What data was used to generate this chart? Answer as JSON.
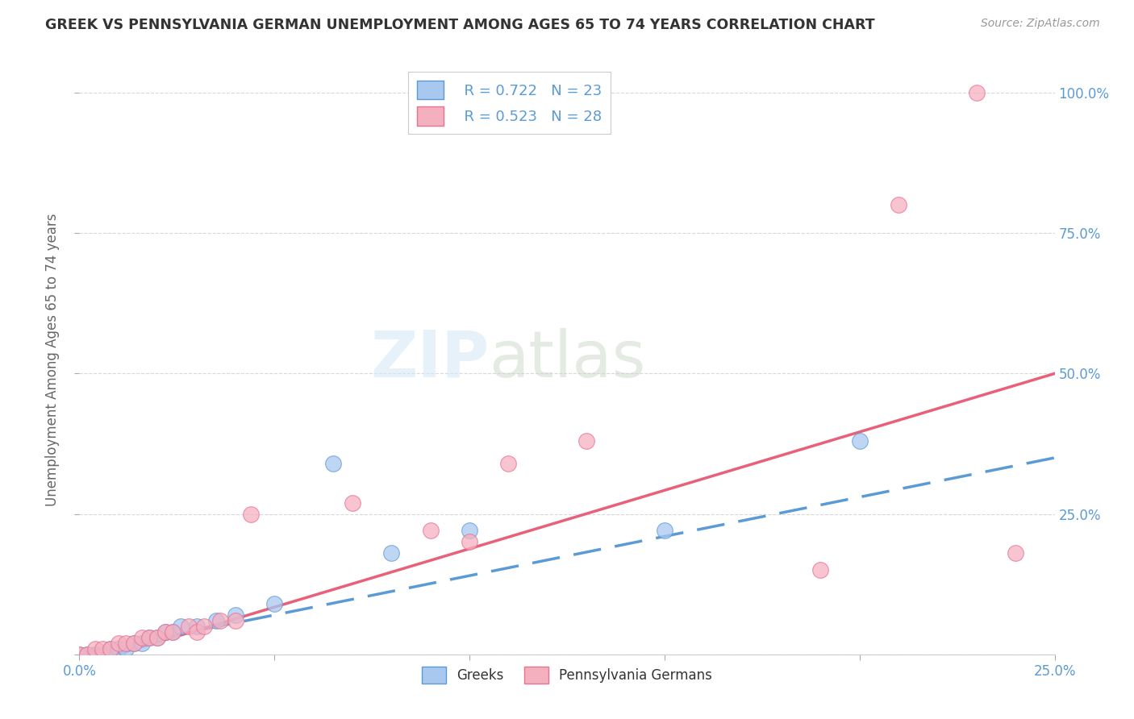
{
  "title": "GREEK VS PENNSYLVANIA GERMAN UNEMPLOYMENT AMONG AGES 65 TO 74 YEARS CORRELATION CHART",
  "source": "Source: ZipAtlas.com",
  "ylabel": "Unemployment Among Ages 65 to 74 years",
  "xlim": [
    0.0,
    0.25
  ],
  "ylim": [
    0.0,
    1.05
  ],
  "x_ticks": [
    0.0,
    0.05,
    0.1,
    0.15,
    0.2,
    0.25
  ],
  "x_tick_labels": [
    "0.0%",
    "",
    "",
    "",
    "",
    "25.0%"
  ],
  "y_ticks": [
    0.0,
    0.25,
    0.5,
    0.75,
    1.0
  ],
  "y_tick_labels_right": [
    "",
    "25.0%",
    "50.0%",
    "75.0%",
    "100.0%"
  ],
  "background_color": "#ffffff",
  "grid_color": "#d0d0d0",
  "legend_r1": "R = 0.722",
  "legend_n1": "N = 23",
  "legend_r2": "R = 0.523",
  "legend_n2": "N = 28",
  "legend_color1": "#a8c8f0",
  "legend_color2": "#f5b0c0",
  "greek_color": "#a8c8f0",
  "pa_german_color": "#f5b0c0",
  "greek_edge_color": "#5B9BD5",
  "pa_german_edge_color": "#E87090",
  "greek_line_color": "#5B9BD5",
  "pa_german_line_color": "#E8607A",
  "greek_scatter": [
    [
      0.0,
      0.0
    ],
    [
      0.002,
      0.0
    ],
    [
      0.004,
      0.0
    ],
    [
      0.006,
      0.0
    ],
    [
      0.008,
      0.01
    ],
    [
      0.01,
      0.01
    ],
    [
      0.012,
      0.01
    ],
    [
      0.014,
      0.02
    ],
    [
      0.016,
      0.02
    ],
    [
      0.018,
      0.03
    ],
    [
      0.02,
      0.03
    ],
    [
      0.022,
      0.04
    ],
    [
      0.024,
      0.04
    ],
    [
      0.026,
      0.05
    ],
    [
      0.03,
      0.05
    ],
    [
      0.035,
      0.06
    ],
    [
      0.04,
      0.07
    ],
    [
      0.05,
      0.09
    ],
    [
      0.065,
      0.34
    ],
    [
      0.08,
      0.18
    ],
    [
      0.1,
      0.22
    ],
    [
      0.15,
      0.22
    ],
    [
      0.2,
      0.38
    ]
  ],
  "pa_german_scatter": [
    [
      0.0,
      0.0
    ],
    [
      0.002,
      0.0
    ],
    [
      0.004,
      0.01
    ],
    [
      0.006,
      0.01
    ],
    [
      0.008,
      0.01
    ],
    [
      0.01,
      0.02
    ],
    [
      0.012,
      0.02
    ],
    [
      0.014,
      0.02
    ],
    [
      0.016,
      0.03
    ],
    [
      0.018,
      0.03
    ],
    [
      0.02,
      0.03
    ],
    [
      0.022,
      0.04
    ],
    [
      0.024,
      0.04
    ],
    [
      0.028,
      0.05
    ],
    [
      0.03,
      0.04
    ],
    [
      0.032,
      0.05
    ],
    [
      0.036,
      0.06
    ],
    [
      0.04,
      0.06
    ],
    [
      0.044,
      0.25
    ],
    [
      0.07,
      0.27
    ],
    [
      0.09,
      0.22
    ],
    [
      0.1,
      0.2
    ],
    [
      0.11,
      0.34
    ],
    [
      0.13,
      0.38
    ],
    [
      0.19,
      0.15
    ],
    [
      0.21,
      0.8
    ],
    [
      0.23,
      1.0
    ],
    [
      0.24,
      0.18
    ]
  ],
  "greek_regression": [
    0.0,
    0.25,
    0.0,
    0.35
  ],
  "pa_regression": [
    0.0,
    0.25,
    -0.02,
    0.5
  ]
}
